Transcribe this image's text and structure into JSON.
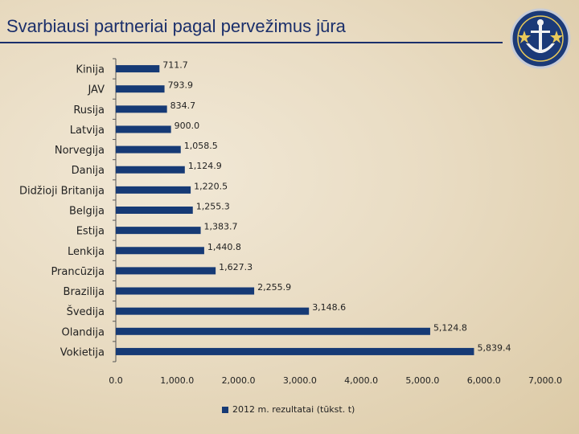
{
  "title": "Svarbiausi partneriai pagal pervežimus jūra",
  "chart_data": {
    "type": "bar",
    "orientation": "horizontal",
    "categories": [
      "Kinija",
      "JAV",
      "Rusija",
      "Latvija",
      "Norvegija",
      "Danija",
      "Didžioji Britanija",
      "Belgija",
      "Estija",
      "Lenkija",
      "Prancūzija",
      "Brazilija",
      "Švedija",
      "Olandija",
      "Vokietija"
    ],
    "series": [
      {
        "name": "2012 m. rezultatai (tūkst. t)",
        "values": [
          711.7,
          793.9,
          834.7,
          900.0,
          1058.5,
          1124.9,
          1220.5,
          1255.3,
          1383.7,
          1440.8,
          1627.3,
          2255.9,
          3148.6,
          5124.8,
          5839.4
        ],
        "value_labels": [
          "711.7",
          "793.9",
          "834.7",
          "900.0",
          "1,058.5",
          "1,124.9",
          "1,220.5",
          "1,255.3",
          "1,383.7",
          "1,440.8",
          "1,627.3",
          "2,255.9",
          "3,148.6",
          "5,124.8",
          "5,839.4"
        ]
      }
    ],
    "xlim": [
      0,
      7000
    ],
    "xticks": [
      0,
      1000,
      2000,
      3000,
      4000,
      5000,
      6000,
      7000
    ],
    "xtick_labels": [
      "0.0",
      "1,000.0",
      "2,000.0",
      "3,000.0",
      "4,000.0",
      "5,000.0",
      "6,000.0",
      "7,000.0"
    ],
    "grid": false,
    "legend_position": "bottom",
    "bar_color": "#163a75"
  }
}
